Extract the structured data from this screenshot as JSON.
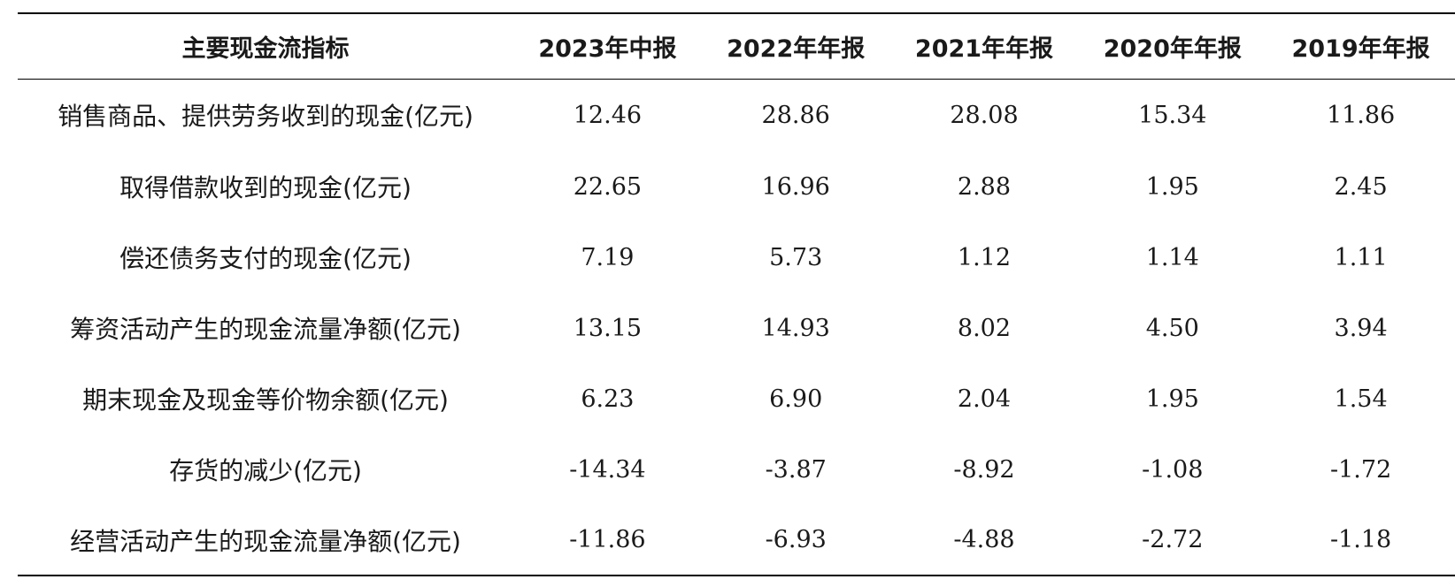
{
  "table": {
    "header": [
      "主要现金流指标",
      "2023年中报",
      "2022年年报",
      "2021年年报",
      "2020年年报",
      "2019年年报"
    ],
    "rows": [
      {
        "label": "销售商品、提供劳务收到的现金(亿元)",
        "values": [
          "12.46",
          "28.86",
          "28.08",
          "15.34",
          "11.86"
        ]
      },
      {
        "label": "取得借款收到的现金(亿元)",
        "values": [
          "22.65",
          "16.96",
          "2.88",
          "1.95",
          "2.45"
        ]
      },
      {
        "label": "偿还债务支付的现金(亿元)",
        "values": [
          "7.19",
          "5.73",
          "1.12",
          "1.14",
          "1.11"
        ]
      },
      {
        "label": "筹资活动产生的现金流量净额(亿元)",
        "values": [
          "13.15",
          "14.93",
          "8.02",
          "4.50",
          "3.94"
        ]
      },
      {
        "label": "期末现金及现金等价物余额(亿元)",
        "values": [
          "6.23",
          "6.90",
          "2.04",
          "1.95",
          "1.54"
        ]
      },
      {
        "label": "存货的减少(亿元)",
        "values": [
          "-14.34",
          "-3.87",
          "-8.92",
          "-1.08",
          "-1.72"
        ]
      },
      {
        "label": "经营活动产生的现金流量净额(亿元)",
        "values": [
          "-11.86",
          "-6.93",
          "-4.88",
          "-2.72",
          "-1.18"
        ]
      }
    ]
  }
}
